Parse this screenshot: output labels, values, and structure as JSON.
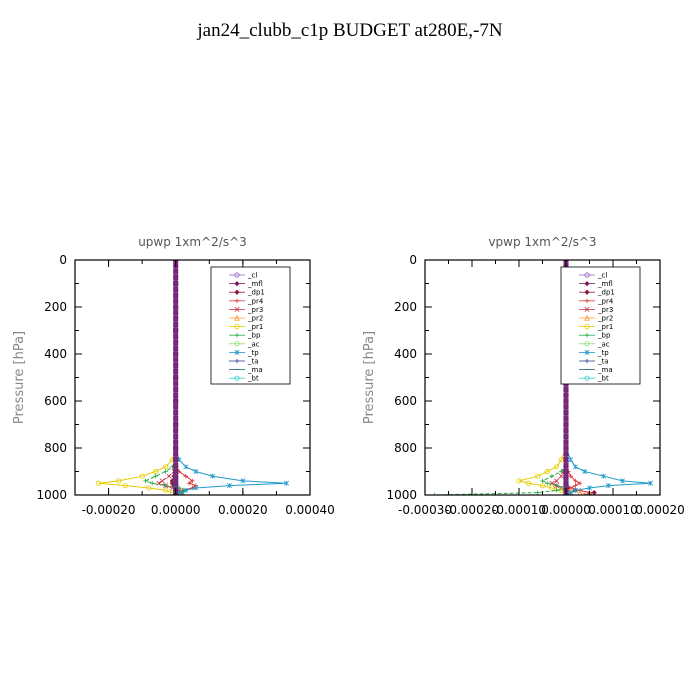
{
  "title": "jan24_clubb_c1p  BUDGET at280E,-7N",
  "chart_data": [
    {
      "type": "line",
      "title": "upwp   1xm^2/s^3",
      "xlabel": "",
      "ylabel": "Pressure [hPa]",
      "xlim": [
        -0.0003,
        0.0004
      ],
      "ylim": [
        0,
        1000
      ],
      "y_inverted": true,
      "xticks": [
        -0.0002,
        0.0,
        0.0002,
        0.0004
      ],
      "xtick_labels": [
        "-0.00020",
        "0.00000",
        "0.00020",
        "0.00040"
      ],
      "yticks": [
        0,
        200,
        400,
        600,
        800,
        1000
      ],
      "ytick_labels": [
        "0",
        "200",
        "400",
        "600",
        "800",
        "1000"
      ],
      "legend_position": "top-right",
      "grid": false,
      "y": [
        0,
        100,
        200,
        300,
        400,
        500,
        600,
        700,
        800,
        850,
        880,
        900,
        920,
        940,
        950,
        960,
        970,
        980,
        990,
        1000
      ],
      "series": [
        {
          "name": "_cl",
          "color": "#9966cc",
          "values": [
            0,
            0,
            0,
            0,
            0,
            0,
            0,
            0,
            0,
            0,
            0,
            0,
            0,
            0,
            0,
            0,
            0,
            0,
            0,
            0
          ]
        },
        {
          "name": "_mfl",
          "color": "#7a1f5c",
          "values": [
            0,
            0,
            0,
            0,
            0,
            0,
            0,
            0,
            0,
            0,
            0,
            0,
            0,
            0,
            0,
            0,
            0,
            0,
            0,
            0
          ]
        },
        {
          "name": "_dp1",
          "color": "#8b1a3a",
          "values": [
            0,
            0,
            0,
            0,
            0,
            0,
            0,
            0,
            0,
            0,
            0,
            0,
            -5e-06,
            -1e-05,
            -1e-05,
            -5e-06,
            0,
            2e-06,
            3e-06,
            0
          ]
        },
        {
          "name": "_pr4",
          "color": "#dd3333",
          "values": [
            0,
            0,
            0,
            0,
            0,
            0,
            0,
            0,
            0,
            0,
            0,
            1e-05,
            3e-05,
            5e-05,
            4e-05,
            6e-05,
            5e-05,
            2e-05,
            1e-05,
            0
          ]
        },
        {
          "name": "_pr3",
          "color": "#cc3344",
          "values": [
            0,
            0,
            0,
            0,
            0,
            0,
            0,
            0,
            0,
            0,
            0,
            -5e-06,
            -2e-05,
            -4e-05,
            -5e-05,
            -3e-05,
            -1e-05,
            1e-05,
            2e-05,
            0
          ]
        },
        {
          "name": "_pr2",
          "color": "#ff9933",
          "values": [
            0,
            0,
            0,
            0,
            0,
            0,
            0,
            0,
            0,
            0,
            0,
            0,
            0,
            0,
            0,
            0,
            0,
            0,
            0,
            0
          ]
        },
        {
          "name": "_pr1",
          "color": "#e6cc00",
          "values": [
            0,
            0,
            0,
            0,
            0,
            0,
            0,
            0,
            0,
            -1e-05,
            -3e-05,
            -6e-05,
            -0.0001,
            -0.00017,
            -0.00023,
            -0.00015,
            -8e-05,
            -3e-05,
            -1e-05,
            0
          ]
        },
        {
          "name": "_bp",
          "color": "#22aa44",
          "values": [
            0,
            0,
            0,
            0,
            0,
            0,
            0,
            0,
            0,
            0,
            -1e-05,
            -3e-05,
            -6e-05,
            -9e-05,
            -7e-05,
            -3e-05,
            1e-05,
            3e-05,
            2e-05,
            0
          ]
        },
        {
          "name": "_ac",
          "color": "#88dd66",
          "values": [
            0,
            0,
            0,
            0,
            0,
            0,
            0,
            0,
            0,
            0,
            0,
            0,
            0,
            0,
            0,
            0,
            0,
            0,
            0,
            0
          ]
        },
        {
          "name": "_tp",
          "color": "#2299cc",
          "values": [
            0,
            0,
            0,
            0,
            0,
            0,
            0,
            0,
            0,
            1e-05,
            3e-05,
            6e-05,
            0.00011,
            0.0002,
            0.00033,
            0.00016,
            6e-05,
            3e-05,
            1e-05,
            0
          ]
        },
        {
          "name": "_ta",
          "color": "#334499",
          "values": [
            0,
            0,
            0,
            0,
            0,
            0,
            0,
            0,
            0,
            0,
            0,
            0,
            0,
            0,
            0,
            0,
            0,
            0,
            0,
            0
          ]
        },
        {
          "name": "_ma",
          "color": "#226688",
          "values": [
            0,
            0,
            0,
            0,
            0,
            0,
            0,
            0,
            0,
            0,
            0,
            0,
            0,
            0,
            0,
            0,
            0,
            0,
            0,
            0
          ]
        },
        {
          "name": "_bt",
          "color": "#33cccc",
          "values": [
            0,
            0,
            0,
            0,
            0,
            0,
            0,
            0,
            0,
            0,
            0,
            0,
            0,
            0,
            0,
            0,
            0,
            0,
            0,
            0
          ]
        }
      ]
    },
    {
      "type": "line",
      "title": "vpwp   1xm^2/s^3",
      "xlabel": "",
      "ylabel": "Pressure [hPa]",
      "xlim": [
        -0.0003,
        0.0002
      ],
      "ylim": [
        0,
        1000
      ],
      "y_inverted": true,
      "xticks": [
        -0.0003,
        -0.0002,
        -0.0001,
        0.0,
        0.0001,
        0.0002
      ],
      "xtick_labels": [
        "-0.00030",
        "-0.00020",
        "-0.00010",
        "0.00000",
        "0.00010",
        "0.00020"
      ],
      "yticks": [
        0,
        200,
        400,
        600,
        800,
        1000
      ],
      "ytick_labels": [
        "0",
        "200",
        "400",
        "600",
        "800",
        "1000"
      ],
      "legend_position": "top-right",
      "grid": false,
      "y": [
        0,
        100,
        200,
        300,
        400,
        500,
        600,
        700,
        800,
        850,
        880,
        900,
        920,
        940,
        950,
        960,
        970,
        980,
        990,
        1000
      ],
      "series": [
        {
          "name": "_cl",
          "color": "#9966cc",
          "values": [
            0,
            0,
            0,
            0,
            0,
            0,
            0,
            0,
            0,
            0,
            0,
            0,
            0,
            0,
            0,
            0,
            0,
            0,
            0,
            0
          ]
        },
        {
          "name": "_mfl",
          "color": "#7a1f5c",
          "values": [
            0,
            0,
            0,
            0,
            0,
            0,
            0,
            0,
            0,
            0,
            0,
            0,
            0,
            0,
            0,
            0,
            0,
            0,
            0,
            0
          ]
        },
        {
          "name": "_dp1",
          "color": "#8b1a3a",
          "values": [
            0,
            0,
            0,
            0,
            0,
            0,
            0,
            0,
            0,
            0,
            0,
            0,
            0,
            0,
            0,
            0,
            5e-06,
            2e-05,
            6e-05,
            5e-05
          ]
        },
        {
          "name": "_pr4",
          "color": "#dd3333",
          "values": [
            0,
            0,
            0,
            0,
            0,
            0,
            0,
            0,
            0,
            0,
            0,
            5e-06,
            1e-05,
            2e-05,
            3e-05,
            2e-05,
            1e-05,
            3e-05,
            5e-05,
            4e-05
          ]
        },
        {
          "name": "_pr3",
          "color": "#cc3344",
          "values": [
            0,
            0,
            0,
            0,
            0,
            0,
            0,
            0,
            0,
            0,
            0,
            -5e-06,
            -1e-05,
            -2e-05,
            -3e-05,
            -2e-05,
            -1e-05,
            0,
            1e-05,
            0
          ]
        },
        {
          "name": "_pr2",
          "color": "#ff9933",
          "values": [
            0,
            0,
            0,
            0,
            0,
            0,
            0,
            0,
            0,
            0,
            0,
            0,
            0,
            0,
            0,
            0,
            0,
            1e-05,
            3e-05,
            5e-05
          ]
        },
        {
          "name": "_pr1",
          "color": "#e6cc00",
          "values": [
            0,
            0,
            0,
            0,
            0,
            0,
            0,
            0,
            0,
            -1e-05,
            -2e-05,
            -4e-05,
            -6e-05,
            -0.0001,
            -8e-05,
            -5e-05,
            -3e-05,
            -1e-05,
            0,
            0
          ]
        },
        {
          "name": "_bp",
          "color": "#22aa44",
          "values": [
            0,
            0,
            0,
            0,
            0,
            0,
            0,
            0,
            0,
            0,
            0,
            -1e-05,
            -3e-05,
            -5e-05,
            -4e-05,
            -2e-05,
            0,
            -2e-05,
            -6e-05,
            -0.00028
          ]
        },
        {
          "name": "_ac",
          "color": "#88dd66",
          "values": [
            0,
            0,
            0,
            0,
            0,
            0,
            0,
            0,
            0,
            0,
            0,
            0,
            0,
            0,
            0,
            0,
            0,
            0,
            0,
            0
          ]
        },
        {
          "name": "_tp",
          "color": "#2299cc",
          "values": [
            0,
            0,
            0,
            0,
            0,
            0,
            0,
            0,
            0,
            1e-05,
            2e-05,
            4e-05,
            8e-05,
            0.00012,
            0.00018,
            9e-05,
            5e-05,
            2e-05,
            1e-05,
            0
          ]
        },
        {
          "name": "_ta",
          "color": "#334499",
          "values": [
            0,
            0,
            0,
            0,
            0,
            0,
            0,
            0,
            0,
            0,
            0,
            0,
            0,
            0,
            0,
            0,
            0,
            0,
            0,
            0
          ]
        },
        {
          "name": "_ma",
          "color": "#226688",
          "values": [
            0,
            0,
            0,
            0,
            0,
            0,
            0,
            0,
            0,
            0,
            0,
            0,
            0,
            0,
            0,
            0,
            0,
            0,
            0,
            0
          ]
        },
        {
          "name": "_bt",
          "color": "#33cccc",
          "values": [
            0,
            0,
            0,
            0,
            0,
            0,
            0,
            0,
            0,
            0,
            0,
            0,
            0,
            0,
            0,
            0,
            0,
            0,
            0,
            0
          ]
        }
      ]
    }
  ]
}
